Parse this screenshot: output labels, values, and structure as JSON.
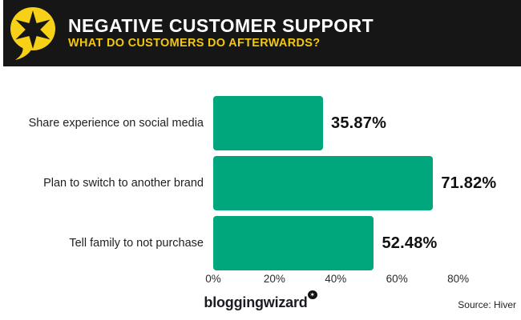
{
  "header": {
    "title": "NEGATIVE CUSTOMER SUPPORT",
    "subtitle": "WHAT DO CUSTOMERS DO AFTERWARDS?",
    "logo": "speech-bubble-with-star",
    "colors": {
      "background": "#161616",
      "title": "#FFFFFF",
      "subtitle": "#F2C710",
      "bubble_yellow": "#F7D118"
    }
  },
  "chart_data": {
    "type": "bar",
    "orientation": "horizontal",
    "title": "",
    "xlabel": "",
    "ylabel": "",
    "categories": [
      "Share experience on social media",
      "Plan to switch to another brand",
      "Tell family to not purchase"
    ],
    "values": [
      35.87,
      71.82,
      52.48
    ],
    "value_labels": [
      "35.87%",
      "71.82%",
      "52.48%"
    ],
    "x_ticks": [
      "0%",
      "20%",
      "40%",
      "60%",
      "80%"
    ],
    "x_tick_values": [
      0,
      20,
      40,
      60,
      80
    ],
    "xlim": [
      0,
      100
    ],
    "bar_color": "#01A77C",
    "grid": false,
    "legend": false
  },
  "footer": {
    "brand": "bloggingwizard",
    "badge_icon": "sparkle",
    "source": "Source: Hiver"
  }
}
